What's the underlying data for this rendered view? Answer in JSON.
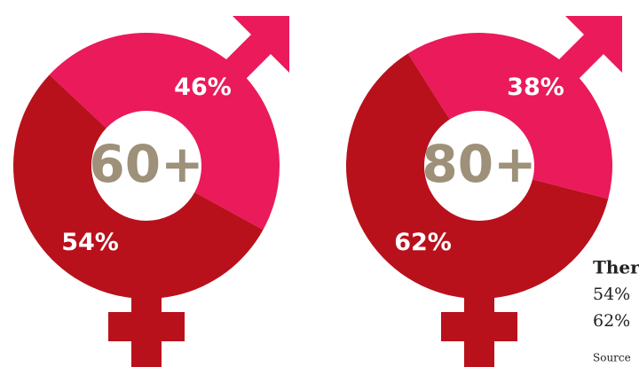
{
  "chart_data": [
    {
      "type": "donut",
      "center_label": "60+",
      "values": [
        46,
        54
      ],
      "value_labels": [
        "46%",
        "54%"
      ],
      "colors": [
        "#ea1a5b",
        "#b8111c"
      ]
    },
    {
      "type": "donut",
      "center_label": "80+",
      "values": [
        38,
        62
      ],
      "value_labels": [
        "38%",
        "62%"
      ],
      "colors": [
        "#ea1a5b",
        "#b8111c"
      ]
    }
  ],
  "notes": {
    "heading": "Ther",
    "lines": [
      "54%",
      "62%"
    ],
    "source": "Source"
  }
}
